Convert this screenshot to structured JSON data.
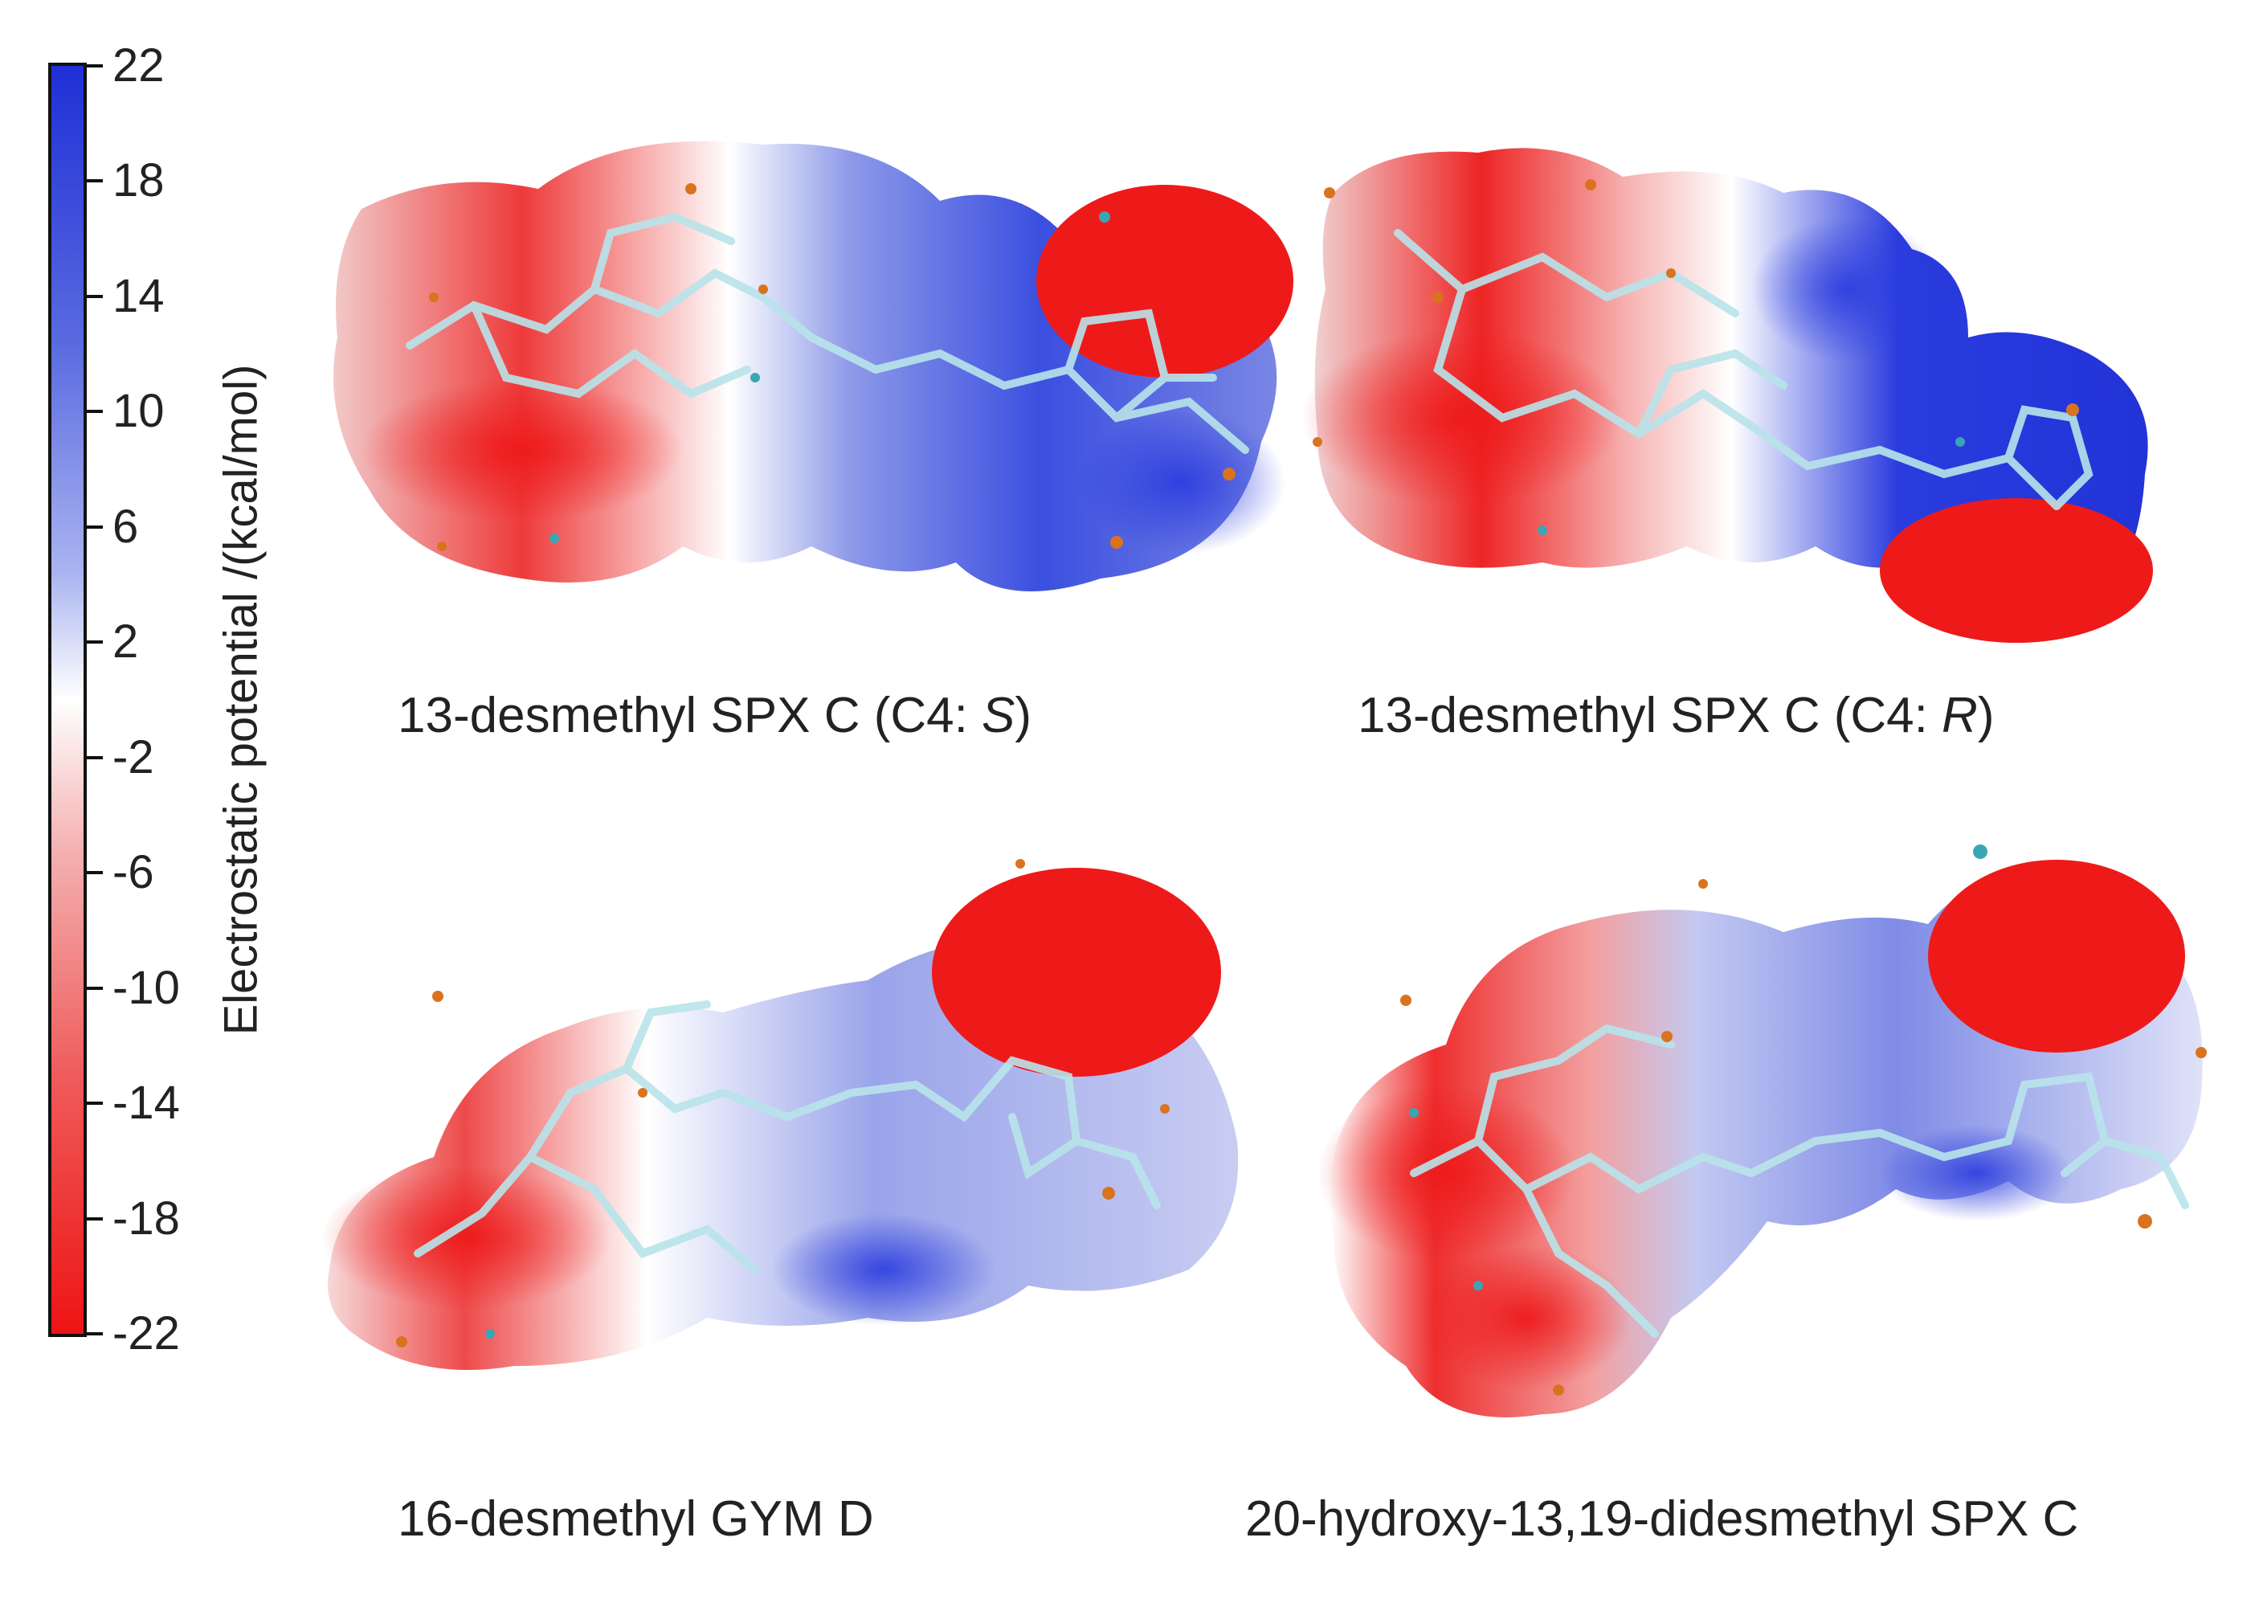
{
  "colorbar": {
    "axis_label": "Electrostatic potential /(kcal/mol)",
    "ticks": [
      "22",
      "18",
      "14",
      "10",
      "6",
      "2",
      "-2",
      "-6",
      "-10",
      "-14",
      "-18",
      "-22"
    ],
    "colors": {
      "positive": "#1f2fd6",
      "neutral": "#ffffff",
      "negative": "#ee1414"
    }
  },
  "panels": [
    {
      "name_prefix": "13-desmethyl SPX C (C4: ",
      "stereo": "S",
      "name_suffix": ")"
    },
    {
      "name_prefix": "13-desmethyl SPX C (C4: ",
      "stereo": "R",
      "name_suffix": ")"
    },
    {
      "name": "16-desmethyl GYM D"
    },
    {
      "name": "20-hydroxy-13,19-didesmethyl SPX C"
    }
  ],
  "colors": {
    "stick": "#b8e4ea",
    "atom_orange": "#d9731f",
    "atom_cyan": "#3aa6b4"
  }
}
